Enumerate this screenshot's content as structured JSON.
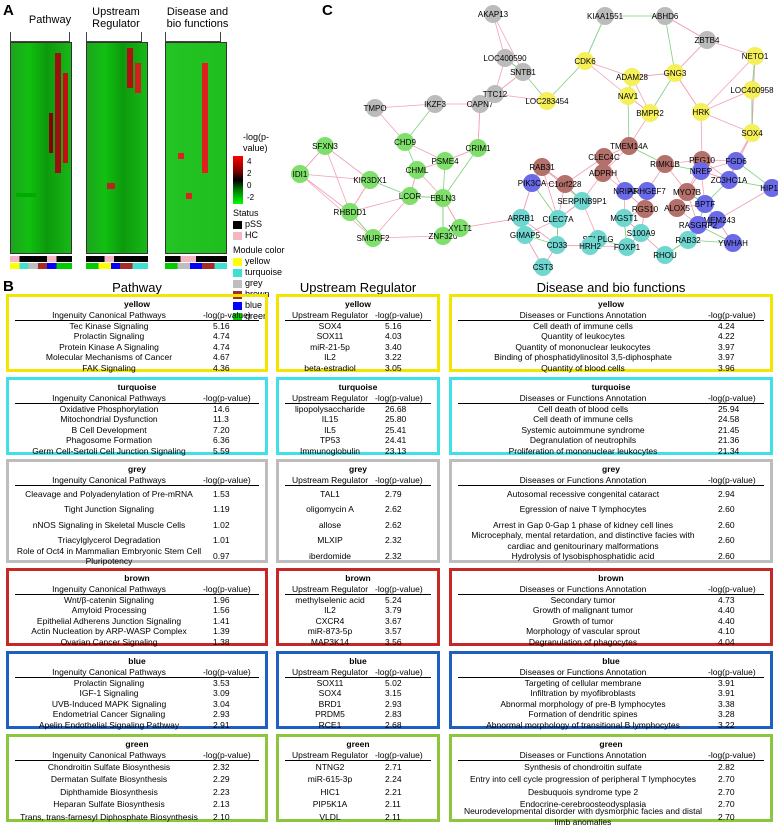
{
  "panel_a": {
    "label": "A",
    "titles": [
      "Pathway",
      "Upstream Regulator",
      "Disease and bio functions"
    ],
    "legend": {
      "scale_title": "-log(p-value)",
      "scale_ticks": [
        "4",
        "2",
        "0",
        "-2"
      ],
      "status_title": "Status",
      "status_items": [
        {
          "label": "pSS",
          "color": "#000000"
        },
        {
          "label": "HC",
          "color": "#f4b6c2"
        }
      ],
      "module_title": "Module color",
      "module_items": [
        {
          "label": "yellow",
          "color": "#ffff00"
        },
        {
          "label": "turquoise",
          "color": "#40e0d0"
        },
        {
          "label": "grey",
          "color": "#bebebe"
        },
        {
          "label": "brown",
          "color": "#a52a2a"
        },
        {
          "label": "blue",
          "color": "#0000ff"
        },
        {
          "label": "green",
          "color": "#00c000"
        }
      ]
    }
  },
  "panel_b": {
    "label": "B"
  },
  "panel_c": {
    "label": "C",
    "nodes": [
      {
        "t": "AKAP13",
        "c": "#bbbbbb"
      },
      {
        "t": "KIAA1551",
        "c": "#bbbbbb"
      },
      {
        "t": "ABHD6",
        "c": "#bbbbbb"
      },
      {
        "t": "ZBTB4",
        "c": "#bbbbbb"
      },
      {
        "t": "LOC400590",
        "c": "#bbbbbb"
      },
      {
        "t": "TMPO",
        "c": "#bbbbbb"
      },
      {
        "t": "IKZF3",
        "c": "#bbbbbb"
      },
      {
        "t": "CAPN7",
        "c": "#bbbbbb"
      },
      {
        "t": "SNTB1",
        "c": "#bbbbbb"
      },
      {
        "t": "TTC12",
        "c": "#bbbbbb"
      },
      {
        "t": "NETO1",
        "c": "#f5f05a"
      },
      {
        "t": "CDK6",
        "c": "#f5f05a"
      },
      {
        "t": "ADAM28",
        "c": "#f5f05a"
      },
      {
        "t": "GNG3",
        "c": "#f5f05a"
      },
      {
        "t": "LOC400958",
        "c": "#f5f05a"
      },
      {
        "t": "NAV1",
        "c": "#f5f05a"
      },
      {
        "t": "LOC283454",
        "c": "#f5f05a"
      },
      {
        "t": "BMPR2",
        "c": "#f5f05a"
      },
      {
        "t": "HRK",
        "c": "#f5f05a"
      },
      {
        "t": "SOX4",
        "c": "#f5f05a"
      },
      {
        "t": "SFXN3",
        "c": "#7ee06a"
      },
      {
        "t": "CHD9",
        "c": "#7ee06a"
      },
      {
        "t": "CRIM1",
        "c": "#7ee06a"
      },
      {
        "t": "IDI1",
        "c": "#7ee06a"
      },
      {
        "t": "CHML",
        "c": "#7ee06a"
      },
      {
        "t": "PSME4",
        "c": "#7ee06a"
      },
      {
        "t": "KIR3DX1",
        "c": "#7ee06a"
      },
      {
        "t": "RHBDD1",
        "c": "#7ee06a"
      },
      {
        "t": "LCOR",
        "c": "#7ee06a"
      },
      {
        "t": "EBLN3",
        "c": "#7ee06a"
      },
      {
        "t": "SMURF2",
        "c": "#7ee06a"
      },
      {
        "t": "ZNF320",
        "c": "#7ee06a"
      },
      {
        "t": "XYLT1",
        "c": "#7ee06a"
      },
      {
        "t": "TMEM14A",
        "c": "#b4716b"
      },
      {
        "t": "RAB31",
        "c": "#b4716b"
      },
      {
        "t": "CLEC4C",
        "c": "#b4716b"
      },
      {
        "t": "RIMKLB",
        "c": "#b4716b"
      },
      {
        "t": "PEG10",
        "c": "#b4716b"
      },
      {
        "t": "ADPRH",
        "c": "#b4716b"
      },
      {
        "t": "C1orf228",
        "c": "#b4716b"
      },
      {
        "t": "MYO7B",
        "c": "#b4716b"
      },
      {
        "t": "RGS10",
        "c": "#b4716b"
      },
      {
        "t": "ALOX5",
        "c": "#b4716b"
      },
      {
        "t": "FGD6",
        "c": "#6a6ae8"
      },
      {
        "t": "PIK3CA",
        "c": "#6a6ae8"
      },
      {
        "t": "NREP",
        "c": "#6a6ae8"
      },
      {
        "t": "ZC3HC1A",
        "c": "#6a6ae8"
      },
      {
        "t": "HIP1R",
        "c": "#6a6ae8"
      },
      {
        "t": "NRIP3",
        "c": "#6a6ae8"
      },
      {
        "t": "ARHGEF7",
        "c": "#6a6ae8"
      },
      {
        "t": "BPTF",
        "c": "#6a6ae8"
      },
      {
        "t": "TMEM243",
        "c": "#6a6ae8"
      },
      {
        "t": "RASGRP2",
        "c": "#6a6ae8"
      },
      {
        "t": "YWHAH",
        "c": "#6a6ae8"
      },
      {
        "t": "SERPINB9P1",
        "c": "#6fd6d0"
      },
      {
        "t": "CLEC7A",
        "c": "#6fd6d0"
      },
      {
        "t": "MGST1",
        "c": "#6fd6d0"
      },
      {
        "t": "ARRB1",
        "c": "#6fd6d0"
      },
      {
        "t": "GIMAP5",
        "c": "#6fd6d0"
      },
      {
        "t": "SELPLG",
        "c": "#6fd6d0"
      },
      {
        "t": "S100A9",
        "c": "#6fd6d0"
      },
      {
        "t": "RAB32",
        "c": "#6fd6d0"
      },
      {
        "t": "CD33",
        "c": "#6fd6d0"
      },
      {
        "t": "HRH2",
        "c": "#6fd6d0"
      },
      {
        "t": "FOXP1",
        "c": "#6fd6d0"
      },
      {
        "t": "RHOU",
        "c": "#6fd6d0"
      },
      {
        "t": "CST3",
        "c": "#6fd6d0"
      }
    ]
  },
  "tables": {
    "col_titles": [
      "Pathway",
      "Upstream Regulator",
      "Disease and bio functions"
    ],
    "modules": [
      {
        "name": "yellow",
        "color": "#f2e600",
        "pathway": {
          "h1": "Ingenuity Canonical Pathways",
          "h2": "-log(p-value)",
          "rows": [
            [
              "Tec Kinase Signaling",
              "5.16"
            ],
            [
              "Prolactin Signaling",
              "4.74"
            ],
            [
              "Protein Kinase A Signaling",
              "4.74"
            ],
            [
              "Molecular Mechanisms of Cancer",
              "4.67"
            ],
            [
              "FAK Signaling",
              "4.36"
            ]
          ]
        },
        "upstream": {
          "h1": "Upstream Regulator",
          "h2": "-log(p-value)",
          "rows": [
            [
              "SOX4",
              "5.16"
            ],
            [
              "SOX11",
              "4.03"
            ],
            [
              "miR-21-5p",
              "3.40"
            ],
            [
              "IL2",
              "3.22"
            ],
            [
              "beta-estradiol",
              "3.05"
            ]
          ]
        },
        "disease": {
          "h1": "Diseases or Functions Annotation",
          "h2": "-log(p-value)",
          "rows": [
            [
              "Cell death of immune cells",
              "4.24"
            ],
            [
              "Quantity of leukocytes",
              "4.22"
            ],
            [
              "Quantity of mononuclear leukocytes",
              "3.97"
            ],
            [
              "Binding of phosphatidylinositol 3,5-diphosphate",
              "3.97"
            ],
            [
              "Quantity of blood cells",
              "3.96"
            ]
          ]
        }
      },
      {
        "name": "turquoise",
        "color": "#3fe0e6",
        "pathway": {
          "h1": "Ingenuity Canonical Pathways",
          "h2": "-log(p-value)",
          "rows": [
            [
              "Oxidative Phosphorylation",
              "14.6"
            ],
            [
              "Mitochondrial Dysfunction",
              "11.3"
            ],
            [
              "B Cell Development",
              "7.20"
            ],
            [
              "Phagosome Formation",
              "6.36"
            ],
            [
              "Germ Cell-Sertoli Cell Junction Signaling",
              "5.59"
            ]
          ]
        },
        "upstream": {
          "h1": "Upstream Regulator",
          "h2": "-log(p-value)",
          "rows": [
            [
              "lipopolysaccharide",
              "26.68"
            ],
            [
              "IL15",
              "25.80"
            ],
            [
              "IL5",
              "25.41"
            ],
            [
              "TP53",
              "24.41"
            ],
            [
              "Immunoglobulin",
              "23.13"
            ]
          ]
        },
        "disease": {
          "h1": "Diseases or Functions Annotation",
          "h2": "-log(p-value)",
          "rows": [
            [
              "Cell death of blood cells",
              "25.94"
            ],
            [
              "Cell death of immune cells",
              "24.58"
            ],
            [
              "Systemic autoimmune syndrome",
              "21.45"
            ],
            [
              "Degranulation of neutrophils",
              "21.36"
            ],
            [
              "Proliferation of mononuclear leukocytes",
              "21.34"
            ]
          ]
        }
      },
      {
        "name": "grey",
        "color": "#bdbdbd",
        "pathway": {
          "h1": "Ingenuity Canonical Pathways",
          "h2": "-log(p-value)",
          "rows": [
            [
              "Cleavage and Polyadenylation of Pre-mRNA",
              "1.53"
            ],
            [
              "Tight Junction Signaling",
              "1.19"
            ],
            [
              "nNOS Signaling in Skeletal Muscle Cells",
              "1.02"
            ],
            [
              "Triacylglycerol Degradation",
              "1.01"
            ],
            [
              "Role of Oct4 in Mammalian Embryonic Stem Cell Pluripotency",
              "0.97"
            ]
          ]
        },
        "upstream": {
          "h1": "Upstream Regulator",
          "h2": "-log(p-value)",
          "rows": [
            [
              "TAL1",
              "2.79"
            ],
            [
              "oligomycin A",
              "2.62"
            ],
            [
              "allose",
              "2.62"
            ],
            [
              "MLXIP",
              "2.32"
            ],
            [
              "iberdomide",
              "2.32"
            ]
          ]
        },
        "disease": {
          "h1": "Diseases or Functions Annotation",
          "h2": "-log(p-value)",
          "rows": [
            [
              "Autosomal recessive congenital cataract",
              "2.94"
            ],
            [
              "Egression of naive T lymphocytes",
              "2.60"
            ],
            [
              "Arrest in Gap 0-Gap 1 phase of kidney cell lines",
              "2.60"
            ],
            [
              "Microcephaly, mental retardation, and distinctive facies with cardiac and genitourinary malformations",
              "2.60"
            ],
            [
              "Hydrolysis of lysobisphosphatidic acid",
              "2.60"
            ]
          ]
        }
      },
      {
        "name": "brown",
        "color": "#c62828",
        "pathway": {
          "h1": "Ingenuity Canonical Pathways",
          "h2": "-log(p-value)",
          "rows": [
            [
              "Wnt/β-catenin Signaling",
              "1.96"
            ],
            [
              "Amyloid Processing",
              "1.56"
            ],
            [
              "Epithelial Adherens Junction Signaling",
              "1.41"
            ],
            [
              "Actin Nucleation by ARP-WASP Complex",
              "1.39"
            ],
            [
              "Ovarian Cancer Signaling",
              "1.38"
            ]
          ]
        },
        "upstream": {
          "h1": "Upstream Regulator",
          "h2": "-log(p-value)",
          "rows": [
            [
              "methylselenic acid",
              "5.24"
            ],
            [
              "IL2",
              "3.79"
            ],
            [
              "CXCR4",
              "3.67"
            ],
            [
              "miR-873-5p",
              "3.57"
            ],
            [
              "MAP3K14",
              "3.56"
            ]
          ]
        },
        "disease": {
          "h1": "Diseases or Functions Annotation",
          "h2": "-log(p-value)",
          "rows": [
            [
              "Secondary tumor",
              "4.73"
            ],
            [
              "Growth of malignant tumor",
              "4.40"
            ],
            [
              "Growth of tumor",
              "4.40"
            ],
            [
              "Morphology of vascular sprout",
              "4.10"
            ],
            [
              "Degranulation of phagocytes",
              "4.04"
            ]
          ]
        }
      },
      {
        "name": "blue",
        "color": "#1f5fbf",
        "pathway": {
          "h1": "Ingenuity Canonical Pathways",
          "h2": "-log(p-value)",
          "rows": [
            [
              "Prolactin Signaling",
              "3.53"
            ],
            [
              "IGF-1 Signaling",
              "3.09"
            ],
            [
              "UVB-Induced MAPK Signaling",
              "3.04"
            ],
            [
              "Endometrial Cancer Signaling",
              "2.93"
            ],
            [
              "Apelin Endothelial Signaling Pathway",
              "2.91"
            ]
          ]
        },
        "upstream": {
          "h1": "Upstream Regulator",
          "h2": "-log(p-value)",
          "rows": [
            [
              "SOX11",
              "5.02"
            ],
            [
              "SOX4",
              "3.15"
            ],
            [
              "BRD1",
              "2.93"
            ],
            [
              "PRDM5",
              "2.83"
            ],
            [
              "RCE1",
              "2.68"
            ]
          ]
        },
        "disease": {
          "h1": "Diseases or Functions Annotation",
          "h2": "-log(p-value)",
          "rows": [
            [
              "Targeting of cellular membrane",
              "3.91"
            ],
            [
              "Infiltration by myofibroblasts",
              "3.91"
            ],
            [
              "Abnormal morphology of pre-B lymphocytes",
              "3.38"
            ],
            [
              "Formation of dendritic spines",
              "3.28"
            ],
            [
              "Abnormal morphology of transitional B lymphocytes",
              "3.22"
            ]
          ]
        }
      },
      {
        "name": "green",
        "color": "#8cc63f",
        "pathway": {
          "h1": "Ingenuity Canonical Pathways",
          "h2": "-log(p-value)",
          "rows": [
            [
              "Chondroitin Sulfate Biosynthesis",
              "2.32"
            ],
            [
              "Dermatan Sulfate Biosynthesis",
              "2.29"
            ],
            [
              "Diphthamide Biosynthesis",
              "2.23"
            ],
            [
              "Heparan Sulfate Biosynthesis",
              "2.13"
            ],
            [
              "Trans, trans-farnesyl Diphosphate Biosynthesis",
              "2.10"
            ]
          ]
        },
        "upstream": {
          "h1": "Upstream Regulator",
          "h2": "-log(p-value)",
          "rows": [
            [
              "NTNG2",
              "2.71"
            ],
            [
              "miR-615-3p",
              "2.24"
            ],
            [
              "HIC1",
              "2.21"
            ],
            [
              "PIP5K1A",
              "2.11"
            ],
            [
              "VLDL",
              "2.11"
            ]
          ]
        },
        "disease": {
          "h1": "Diseases or Functions Annotation",
          "h2": "-log(p-value)",
          "rows": [
            [
              "Synthesis of chondroitin sulfate",
              "2.82"
            ],
            [
              "Entry into cell cycle progression of peripheral T lymphocytes",
              "2.70"
            ],
            [
              "Desbuquois syndrome type 2",
              "2.70"
            ],
            [
              "Endocrine-cerebroosteodysplasia",
              "2.70"
            ],
            [
              "Neurodevelopmental disorder with dysmorphic facies and distal limb anomalies",
              "2.70"
            ]
          ]
        }
      }
    ]
  }
}
